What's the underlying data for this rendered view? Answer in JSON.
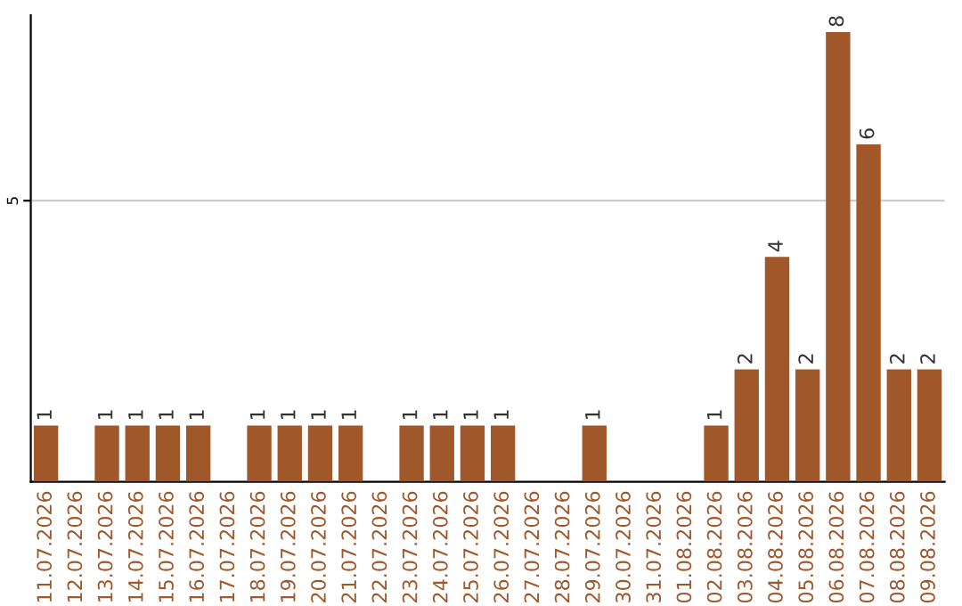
{
  "chart_data": {
    "type": "bar",
    "categories": [
      "11.07.2026",
      "12.07.2026",
      "13.07.2026",
      "14.07.2026",
      "15.07.2026",
      "16.07.2026",
      "17.07.2026",
      "18.07.2026",
      "19.07.2026",
      "20.07.2026",
      "21.07.2026",
      "22.07.2026",
      "23.07.2026",
      "24.07.2026",
      "25.07.2026",
      "26.07.2026",
      "27.07.2026",
      "28.07.2026",
      "29.07.2026",
      "30.07.2026",
      "31.07.2026",
      "01.08.2026",
      "02.08.2026",
      "03.08.2026",
      "04.08.2026",
      "05.08.2026",
      "06.08.2026",
      "07.08.2026",
      "08.08.2026",
      "09.08.2026"
    ],
    "values": [
      1,
      0,
      1,
      1,
      1,
      1,
      0,
      1,
      1,
      1,
      1,
      0,
      1,
      1,
      1,
      1,
      0,
      0,
      1,
      0,
      0,
      0,
      1,
      2,
      4,
      2,
      8,
      6,
      2,
      2
    ],
    "value_labels": [
      "1",
      null,
      "1",
      "1",
      "1",
      "1",
      null,
      "1",
      "1",
      "1",
      "1",
      null,
      "1",
      "1",
      "1",
      "1",
      null,
      null,
      "1",
      null,
      null,
      null,
      "1",
      "2",
      "4",
      "2",
      "8",
      "6",
      "2",
      "2"
    ],
    "color": "#a0582a",
    "ylim": [
      0,
      8.3
    ],
    "yticks": [
      5
    ],
    "grid": "y"
  }
}
